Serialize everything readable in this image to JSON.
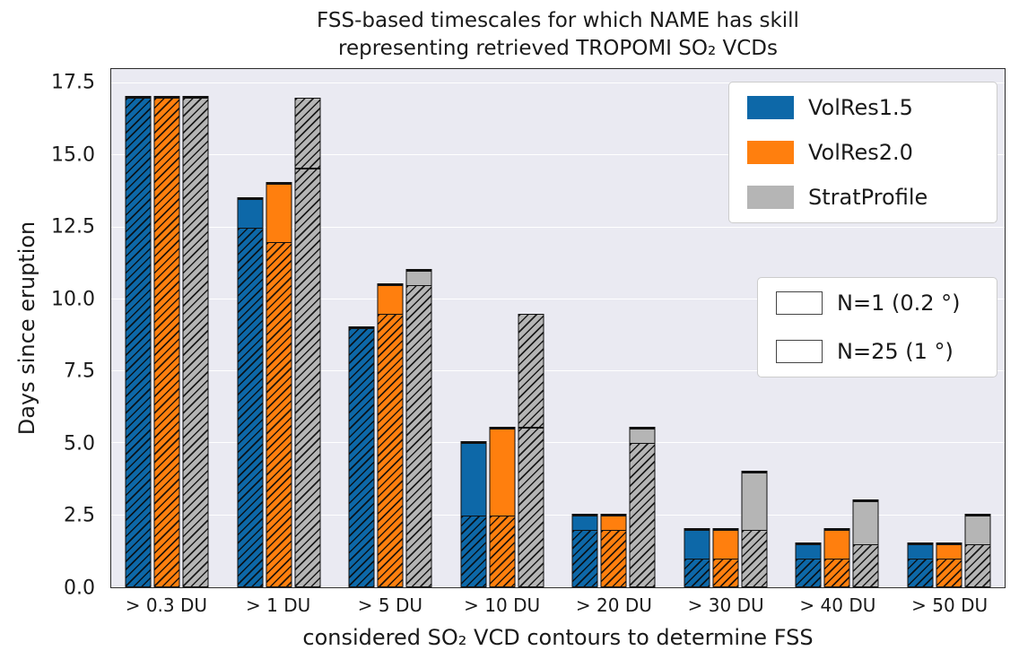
{
  "chart_data": {
    "type": "bar",
    "title": [
      "FSS-based timescales for which NAME has skill",
      "representing retrieved TROPOMI SO₂ VCDs"
    ],
    "xlabel": "considered SO₂ VCD contours to determine FSS",
    "ylabel": "Days since eruption",
    "categories": [
      "> 0.3 DU",
      "> 1 DU",
      "> 5 DU",
      "> 10 DU",
      "> 20 DU",
      "> 30 DU",
      "> 40 DU",
      "> 50 DU"
    ],
    "yticks": [
      0,
      2.5,
      5,
      7.5,
      10,
      12.5,
      15,
      17.5
    ],
    "ylim": [
      0,
      18
    ],
    "grid": "horizontal",
    "plot_background": "#eaeaf2",
    "legend_position": "upper right",
    "series": [
      {
        "name": "VolRes1.5",
        "color": "#0d68a8",
        "n25": [
          17,
          13.5,
          9,
          5,
          2.5,
          2,
          1.5,
          1.5
        ],
        "n1": [
          17,
          12.5,
          9,
          2.5,
          2,
          1,
          1,
          1
        ]
      },
      {
        "name": "VolRes2.0",
        "color": "#ff7f0e",
        "n25": [
          17,
          14,
          10.5,
          5.5,
          2.5,
          2,
          2,
          1.5
        ],
        "n1": [
          17,
          12,
          9.5,
          2.5,
          2,
          1,
          1,
          1
        ]
      },
      {
        "name": "StratProfile",
        "color": "#b5b5b5",
        "n25": [
          17,
          14.5,
          11,
          5.5,
          5.5,
          4,
          3,
          2.5
        ],
        "n1": [
          17,
          17,
          10.5,
          9.5,
          5,
          2,
          1.5,
          1.5
        ]
      }
    ],
    "variants": [
      {
        "label": "N=1 (0.2 °)",
        "hatched": true
      },
      {
        "label": "N=25 (1 °)",
        "hatched": false
      }
    ]
  }
}
